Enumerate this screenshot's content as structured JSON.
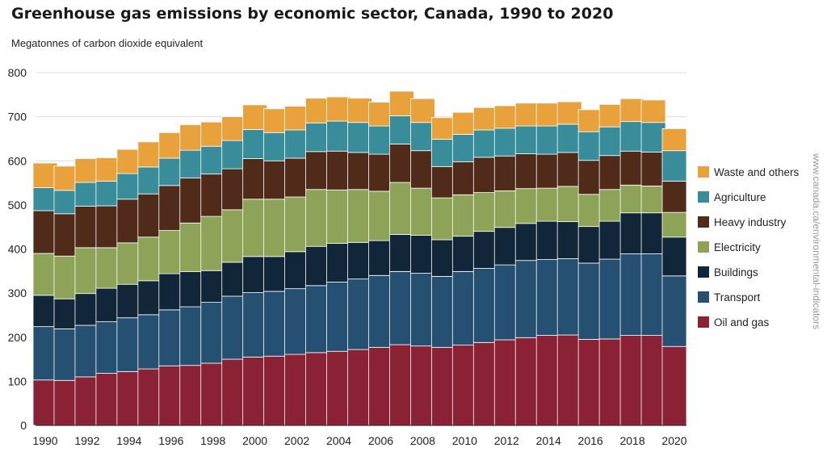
{
  "chart_data": {
    "type": "bar",
    "stacked": true,
    "title": "Greenhouse gas emissions by economic sector, Canada, 1990 to 2020",
    "ylabel": "Megatonnes of carbon dioxide equivalent",
    "xlabel": "",
    "ylim": [
      0,
      800
    ],
    "yticks": [
      0,
      100,
      200,
      300,
      400,
      500,
      600,
      700,
      800
    ],
    "grid": true,
    "legend_position": "right",
    "categories": [
      "1990",
      "1991",
      "1992",
      "1993",
      "1994",
      "1995",
      "1996",
      "1997",
      "1998",
      "1999",
      "2000",
      "2001",
      "2002",
      "2003",
      "2004",
      "2005",
      "2006",
      "2007",
      "2008",
      "2009",
      "2010",
      "2011",
      "2012",
      "2013",
      "2014",
      "2015",
      "2016",
      "2017",
      "2018",
      "2019",
      "2020"
    ],
    "xtick_labels": [
      "1990",
      "",
      "1992",
      "",
      "1994",
      "",
      "1996",
      "",
      "1998",
      "",
      "2000",
      "",
      "2002",
      "",
      "2004",
      "",
      "2006",
      "",
      "2008",
      "",
      "2010",
      "",
      "2012",
      "",
      "2014",
      "",
      "2016",
      "",
      "2018",
      "",
      "2020"
    ],
    "series": [
      {
        "name": "Oil and gas",
        "color": "#8b2134",
        "values": [
          103,
          102,
          110,
          118,
          122,
          128,
          135,
          136,
          141,
          150,
          155,
          157,
          161,
          165,
          168,
          172,
          177,
          183,
          180,
          177,
          182,
          188,
          194,
          199,
          204,
          205,
          195,
          196,
          204,
          204,
          179
        ]
      },
      {
        "name": "Transport",
        "color": "#255072",
        "values": [
          121,
          117,
          117,
          117,
          122,
          123,
          127,
          133,
          138,
          143,
          146,
          147,
          149,
          152,
          157,
          160,
          163,
          166,
          165,
          161,
          167,
          168,
          170,
          175,
          172,
          173,
          173,
          181,
          185,
          185,
          160
        ]
      },
      {
        "name": "Buildings",
        "color": "#12263a",
        "values": [
          71,
          68,
          72,
          76,
          76,
          77,
          82,
          80,
          72,
          77,
          82,
          79,
          84,
          89,
          88,
          83,
          79,
          84,
          86,
          83,
          80,
          84,
          85,
          84,
          87,
          84,
          83,
          86,
          93,
          93,
          88
        ]
      },
      {
        "name": "Electricity",
        "color": "#8da458",
        "values": [
          95,
          97,
          104,
          92,
          94,
          99,
          98,
          110,
          123,
          119,
          130,
          130,
          124,
          129,
          121,
          120,
          112,
          118,
          107,
          95,
          94,
          88,
          83,
          79,
          75,
          80,
          73,
          72,
          63,
          61,
          56
        ]
      },
      {
        "name": "Heavy industry",
        "color": "#502b1a",
        "values": [
          97,
          96,
          94,
          95,
          99,
          98,
          102,
          102,
          96,
          93,
          92,
          87,
          88,
          86,
          88,
          84,
          84,
          87,
          85,
          71,
          75,
          80,
          79,
          79,
          77,
          77,
          77,
          77,
          77,
          77,
          71
        ]
      },
      {
        "name": "Agriculture",
        "color": "#398c9a",
        "values": [
          52,
          53,
          54,
          56,
          58,
          61,
          62,
          63,
          63,
          64,
          66,
          64,
          64,
          65,
          68,
          68,
          64,
          64,
          64,
          62,
          62,
          62,
          63,
          63,
          64,
          64,
          65,
          65,
          67,
          67,
          69
        ]
      },
      {
        "name": "Waste and others",
        "color": "#e9a23b",
        "values": [
          56,
          55,
          54,
          53,
          55,
          57,
          58,
          58,
          55,
          54,
          56,
          54,
          54,
          56,
          55,
          55,
          54,
          56,
          54,
          49,
          50,
          51,
          51,
          52,
          52,
          51,
          50,
          51,
          52,
          51,
          50
        ]
      }
    ]
  },
  "credit": "www.canada.ca/environmental-indicators"
}
